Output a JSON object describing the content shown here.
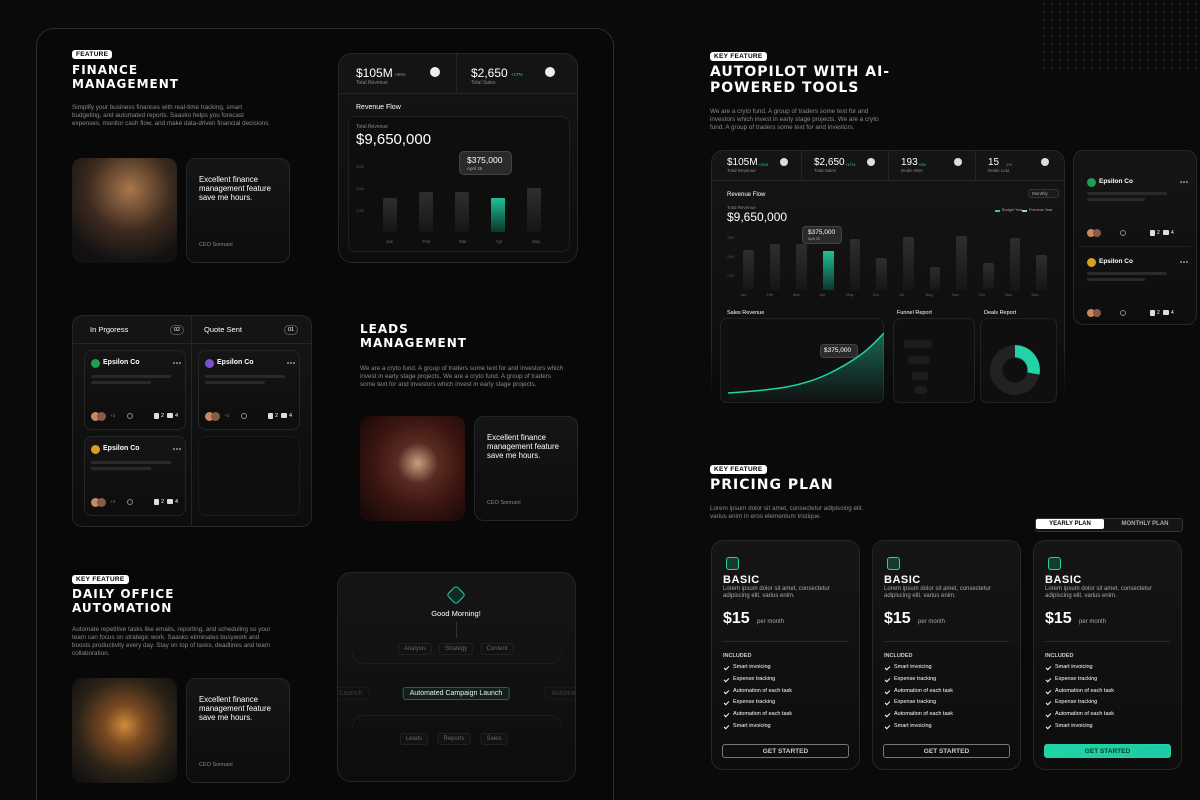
{
  "finance": {
    "tag": "FEATURE",
    "title": "FINANCE MANAGEMENT",
    "description": "Simplify your business finances with real-time tracking, smart budgeting, and automated reports. Saasko helps you forecast expenses, monitor cash flow, and make data-driven financial decisions.",
    "testimonial": {
      "quote": "Excellent finance management feature save me hours.",
      "author": "CEO Sonnani"
    },
    "widget": {
      "stats": [
        {
          "value": "$105M",
          "change": "+20%",
          "label": "Total Revenue"
        },
        {
          "value": "$2,650",
          "change": "+17%",
          "label": "Total Sales"
        }
      ],
      "chart_title": "Revenue Flow",
      "total_label": "Total Revenue",
      "total": "$9,650,000",
      "tooltip": {
        "value": "$375,000",
        "date": "April 25"
      },
      "y_labels": [
        "30M",
        "20M",
        "10M"
      ],
      "months": [
        "Jan",
        "Feb",
        "Mar",
        "Apr",
        "May"
      ]
    }
  },
  "pipeline": {
    "columns": [
      {
        "title": "In Prgoress",
        "count": "02"
      },
      {
        "title": "Quote Sent",
        "count": "01"
      }
    ],
    "cards": [
      {
        "name": "Epsilon Co",
        "extra": "+3",
        "files": 2,
        "comments": 4
      },
      {
        "name": "Epsilon Co",
        "extra": "+3",
        "files": 2,
        "comments": 4
      },
      {
        "name": "Epsilon Co",
        "extra": "+3",
        "files": 2,
        "comments": 4
      }
    ]
  },
  "leads": {
    "title": "LEADS MANAGEMENT",
    "description": "We are a cryto fund. A group of traders some text for and investors which invest in early stage projects. We are a cryto fund. A group of traders some text for and investors which invest in early stage projects.",
    "testimonial": {
      "quote": "Excellent finance management feature save me hours.",
      "author": "CEO Sonnani"
    }
  },
  "office": {
    "tag": "KEY FEATURE",
    "title": "DAILY OFFICE AUTOMATION",
    "description": "Automate repetitive tasks like emails, reporting, and scheduling so your team can focus on strategic work. Saasko eliminates busywork and boosts productivity every day. Stay on top of tasks, deadlines and team collaboration.",
    "testimonial": {
      "quote": "Excellent finance management feature save me hours.",
      "author": "CEO Sonnani"
    },
    "workflow": {
      "greeting": "Good Morning!",
      "top": [
        "Analysis",
        "Strategy",
        "Content"
      ],
      "middle": [
        "Campaign Launch",
        "Automated Campaign Launch",
        "Automated Email"
      ],
      "bottom": [
        "Leads",
        "Reports",
        "Sales"
      ]
    }
  },
  "autopilot": {
    "tag": "KEY FEATURE",
    "title": "AUTOPILOT WITH AI-POWERED TOOLS",
    "description": "We are a cryto fund. A group of traders some text for and investors which invest in early stage projects. We are a cryto fund. A group of traders some text for and investors.",
    "dashboard": {
      "stats": [
        {
          "value": "$105M",
          "change": "+20%",
          "label": "Total Revenue"
        },
        {
          "value": "$2,650",
          "change": "+17%",
          "label": "Total Sales"
        },
        {
          "value": "193",
          "change": "+8%",
          "label": "Deals Won"
        },
        {
          "value": "15",
          "change": "-1%",
          "label": "Deals Lost"
        }
      ],
      "chart_title": "Revenue Flow",
      "period": "Monthly",
      "legend": [
        "Budget Year",
        "Previous Year"
      ],
      "total_label": "Total Revenue",
      "total": "$9,650,000",
      "tooltip": {
        "value": "$375,000",
        "date": "April 25"
      },
      "y_labels": [
        "30M",
        "20M",
        "10M"
      ],
      "months": [
        "Jan",
        "Feb",
        "Mar",
        "Apr",
        "May",
        "Jun",
        "Jul",
        "Aug",
        "Sep",
        "Oct",
        "Nov",
        "Dec"
      ],
      "panels": [
        "Sales Revenue",
        "Funnel Report",
        "Deals Report"
      ],
      "sales_tooltip": "$375,000"
    },
    "clients": [
      {
        "name": "Epsilon Co",
        "files": 2,
        "comments": 4
      },
      {
        "name": "Epsilon Co",
        "files": 2,
        "comments": 4
      }
    ]
  },
  "pricing": {
    "tag": "KEY FEATURE",
    "title": "PRICING PLAN",
    "description": "Lorem ipsum dolor sit amet, consectetur adipiscing elit. varius enim in eros elementum tristique.",
    "toggle": [
      "YEARLY PLAN",
      "MONTHLY PLAN"
    ],
    "plans": [
      {
        "name": "BASIC",
        "description": "Lorem ipsum dolor sit amet, consectetur adipiscing elit. varius enim.",
        "price": "$15",
        "period": "per month",
        "included_label": "INCLUDED",
        "features": [
          "Smart invoicing",
          "Expense tracking",
          "Automation of each task",
          "Expense tracking",
          "Automation of each task",
          "Smart invoicing"
        ],
        "button": "GET STARTED"
      },
      {
        "name": "BASIC",
        "description": "Lorem ipsum dolor sit amet, consectetur adipiscing elit. varius enim.",
        "price": "$15",
        "period": "per month",
        "included_label": "INCLUDED",
        "features": [
          "Smart invoicing",
          "Expense tracking",
          "Automation of each task",
          "Expense tracking",
          "Automation of each task",
          "Smart invoicing"
        ],
        "button": "GET STARTED"
      },
      {
        "name": "BASIC",
        "description": "Lorem ipsum dolor sit amet, consectetur adipiscing elit. varius enim.",
        "price": "$15",
        "period": "per month",
        "included_label": "INCLUDED",
        "features": [
          "Smart invoicing",
          "Expense tracking",
          "Automation of each task",
          "Expense tracking",
          "Automation of each task",
          "Smart invoicing"
        ],
        "button": "GET STARTED"
      }
    ]
  }
}
